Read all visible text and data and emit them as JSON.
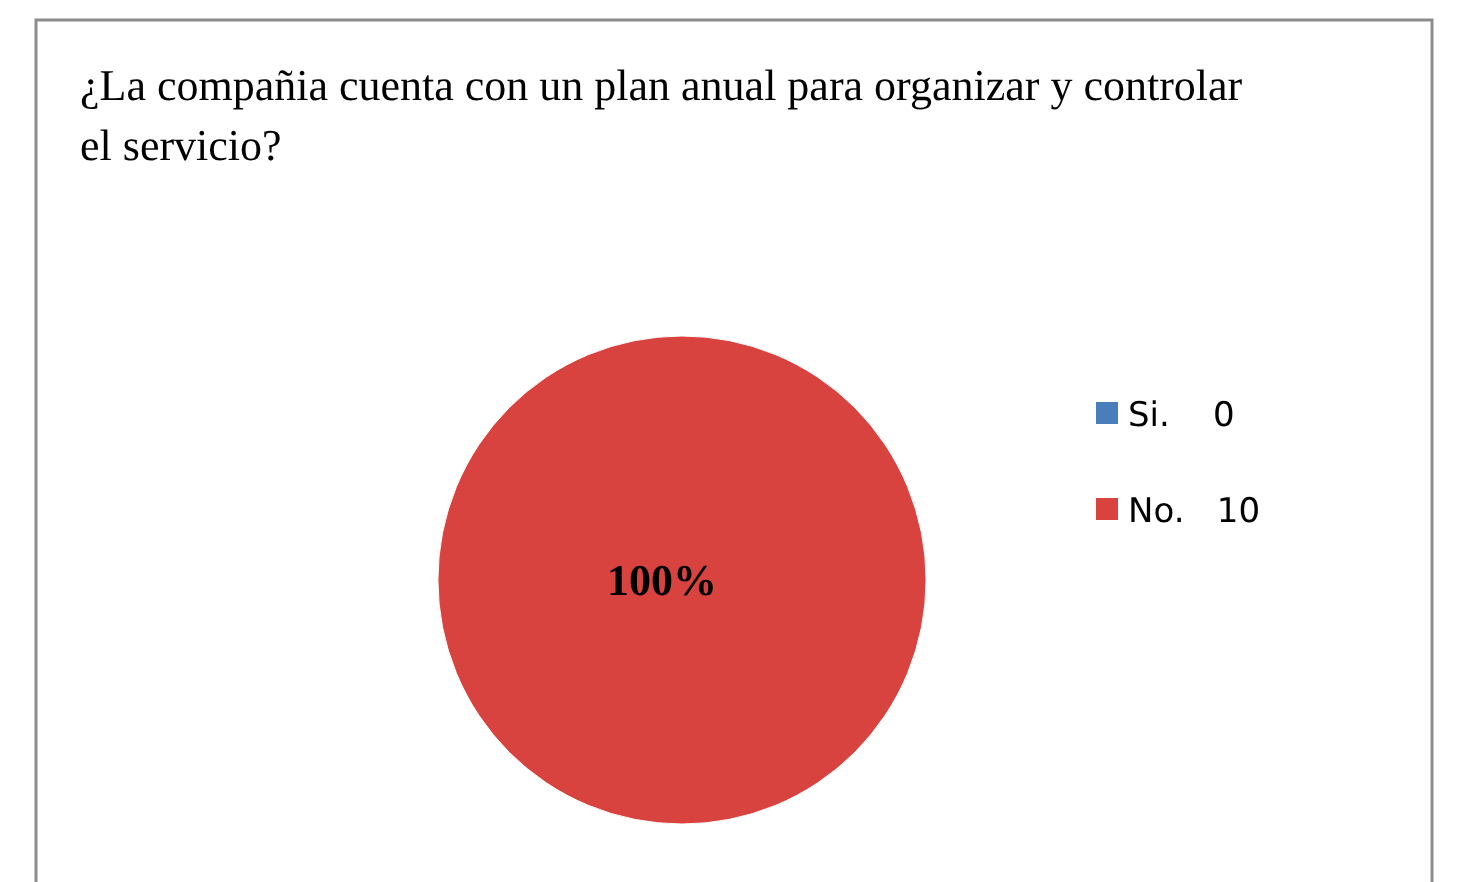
{
  "chart_data": {
    "type": "pie",
    "title": "¿La compañia cuenta con un plan anual para organizar y controlar el servicio?",
    "categories": [
      "Si.    0",
      "No.   10"
    ],
    "values": [
      0,
      100
    ],
    "colors": [
      "#4a7ebb",
      "#d9433f"
    ],
    "value_labels": [
      null,
      "100%"
    ],
    "legend": "right"
  }
}
